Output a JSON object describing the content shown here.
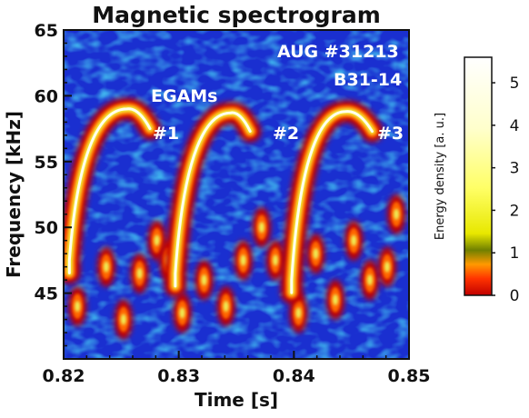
{
  "chart_data": {
    "type": "heatmap",
    "title": "Magnetic spectrogram",
    "xlabel": "Time [s]",
    "ylabel": "Frequency [kHz]",
    "xlim": [
      0.82,
      0.85
    ],
    "ylim": [
      40,
      65
    ],
    "x_ticks": [
      "0.82",
      "0.83",
      "0.84",
      "0.85"
    ],
    "x_tick_values": [
      0.82,
      0.83,
      0.84,
      0.85
    ],
    "y_ticks": [
      "45",
      "50",
      "55",
      "60",
      "65"
    ],
    "y_tick_values": [
      45,
      50,
      55,
      60,
      65
    ],
    "annotations": {
      "shot": "AUG #31213",
      "probe": "B31-14",
      "mode": "EGAMs",
      "burst_1": "#1",
      "burst_2": "#2",
      "burst_3": "#3"
    },
    "colorbar": {
      "label": "Energy density [a. u.]",
      "ticks": [
        "0",
        "1",
        "2",
        "3",
        "4",
        "5"
      ],
      "tick_values": [
        0,
        1,
        2,
        3,
        4,
        5
      ],
      "range": [
        0,
        5.6
      ],
      "colors": [
        "#c00000",
        "#ff3300",
        "#ff9900",
        "#708000",
        "#e8e800",
        "#ffff66",
        "#ffffcc",
        "#ffffff"
      ]
    },
    "background_color": "#1a2fd0",
    "egam_bursts": [
      {
        "name": "#1",
        "t_start": 0.8205,
        "f_start": 47.5,
        "t_peak": 0.8255,
        "f_peak": 59.0,
        "t_end": 0.8275,
        "f_end": 57.5
      },
      {
        "name": "#2",
        "t_start": 0.8297,
        "f_start": 46.5,
        "t_peak": 0.8345,
        "f_peak": 58.7,
        "t_end": 0.8362,
        "f_end": 57.3
      },
      {
        "name": "#3",
        "t_start": 0.8398,
        "f_start": 46.0,
        "t_peak": 0.8445,
        "f_peak": 58.8,
        "t_end": 0.8468,
        "f_end": 57.3
      }
    ],
    "low_freq_blobs": [
      {
        "t": 0.8212,
        "f": 44.0
      },
      {
        "t": 0.8237,
        "f": 47.0
      },
      {
        "t": 0.8252,
        "f": 43.0
      },
      {
        "t": 0.8266,
        "f": 46.5
      },
      {
        "t": 0.8281,
        "f": 49.0
      },
      {
        "t": 0.8291,
        "f": 47.5
      },
      {
        "t": 0.8303,
        "f": 43.5
      },
      {
        "t": 0.8322,
        "f": 46.0
      },
      {
        "t": 0.8341,
        "f": 44.0
      },
      {
        "t": 0.8356,
        "f": 47.5
      },
      {
        "t": 0.8372,
        "f": 50.0
      },
      {
        "t": 0.8384,
        "f": 47.5
      },
      {
        "t": 0.8404,
        "f": 43.5
      },
      {
        "t": 0.8419,
        "f": 48.0
      },
      {
        "t": 0.8436,
        "f": 44.5
      },
      {
        "t": 0.8452,
        "f": 49.0
      },
      {
        "t": 0.8466,
        "f": 46.0
      },
      {
        "t": 0.8481,
        "f": 47.0
      },
      {
        "t": 0.8489,
        "f": 51.0
      }
    ]
  }
}
